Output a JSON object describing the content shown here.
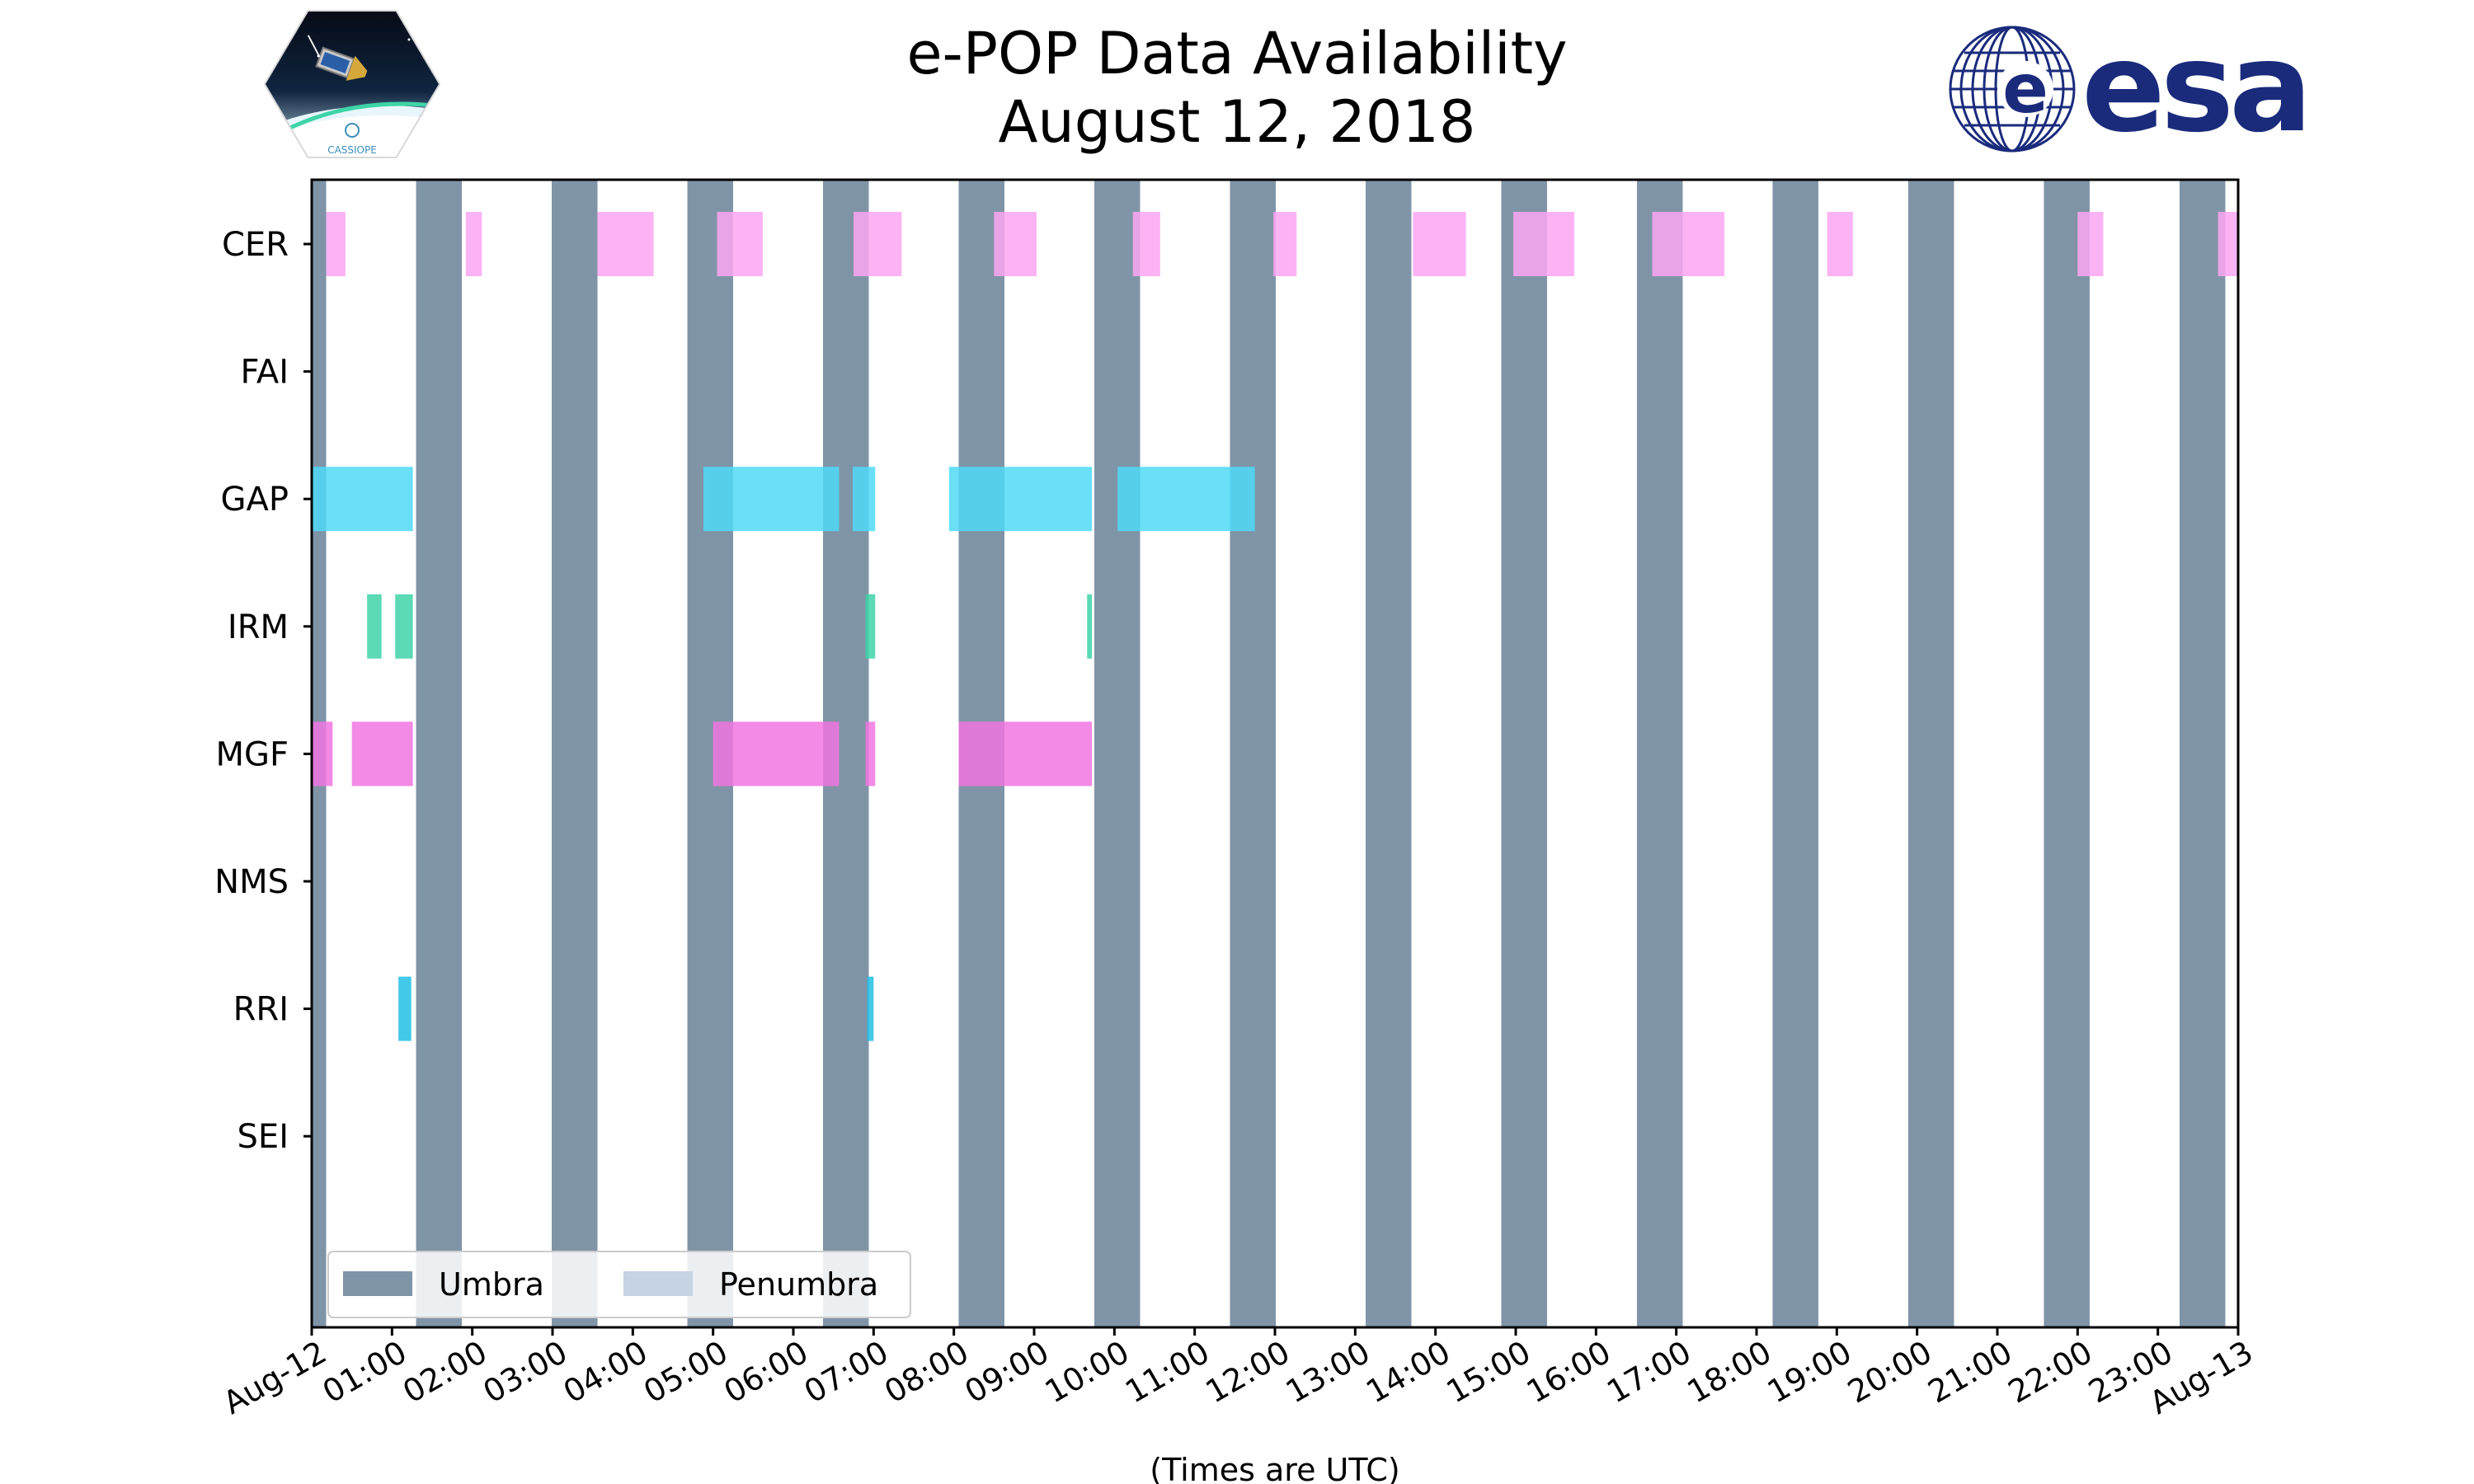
{
  "title": "e-POP Data Availability",
  "subtitle": "August 12, 2018",
  "logos": {
    "left_text": "CASSIOPE",
    "right_text": "esa"
  },
  "colors": {
    "umbra": "#8094a7",
    "penumbra": "#c5d3e4",
    "CER": "#fca6f2",
    "GAP": "#4fd9f7",
    "IRM": "#3ed4a8",
    "MGF": "#f176e2",
    "RRI": "#22bfe4",
    "esa_blue": "#1a2b7c"
  },
  "chart_data": {
    "type": "timeline",
    "title": "e-POP Data Availability",
    "subtitle": "August 12, 2018",
    "xlabel": "(Times are UTC)",
    "x_range_hours": [
      0,
      24
    ],
    "x_tick_labels": [
      "Aug-12",
      "01:00",
      "02:00",
      "03:00",
      "04:00",
      "05:00",
      "06:00",
      "07:00",
      "08:00",
      "09:00",
      "10:00",
      "11:00",
      "12:00",
      "13:00",
      "14:00",
      "15:00",
      "16:00",
      "17:00",
      "18:00",
      "19:00",
      "20:00",
      "21:00",
      "22:00",
      "23:00",
      "Aug-13"
    ],
    "instruments": [
      "CER",
      "FAI",
      "GAP",
      "IRM",
      "MGF",
      "NMS",
      "RRI",
      "SEI"
    ],
    "legend": {
      "placement": "lower-left",
      "entries": [
        "Umbra",
        "Penumbra"
      ]
    },
    "umbra_intervals_hours": [
      [
        0.0,
        0.18
      ],
      [
        1.3,
        1.87
      ],
      [
        2.99,
        3.56
      ],
      [
        4.68,
        5.25
      ],
      [
        6.37,
        6.94
      ],
      [
        8.06,
        8.63
      ],
      [
        9.75,
        10.32
      ],
      [
        11.44,
        12.01
      ],
      [
        13.13,
        13.7
      ],
      [
        14.82,
        15.39
      ],
      [
        16.51,
        17.08
      ],
      [
        18.2,
        18.77
      ],
      [
        19.89,
        20.46
      ],
      [
        21.58,
        22.15
      ],
      [
        23.27,
        23.84
      ]
    ],
    "series": [
      {
        "name": "CER",
        "intervals_hours": [
          [
            0.18,
            0.42
          ],
          [
            1.92,
            2.12
          ],
          [
            3.56,
            4.26
          ],
          [
            5.05,
            5.62
          ],
          [
            6.75,
            7.35
          ],
          [
            8.5,
            9.03
          ],
          [
            10.23,
            10.57
          ],
          [
            11.98,
            12.27
          ],
          [
            13.72,
            14.38
          ],
          [
            14.97,
            15.73
          ],
          [
            16.7,
            17.6
          ],
          [
            18.88,
            19.2
          ],
          [
            22.0,
            22.32
          ],
          [
            23.75,
            24.0
          ]
        ]
      },
      {
        "name": "FAI",
        "intervals_hours": []
      },
      {
        "name": "GAP",
        "intervals_hours": [
          [
            0.0,
            1.26
          ],
          [
            4.88,
            6.57
          ],
          [
            6.74,
            7.02
          ],
          [
            7.94,
            9.72
          ],
          [
            10.04,
            11.75
          ]
        ]
      },
      {
        "name": "IRM",
        "intervals_hours": [
          [
            0.69,
            0.87
          ],
          [
            1.04,
            1.26
          ],
          [
            6.9,
            7.02
          ],
          [
            9.66,
            9.72
          ]
        ]
      },
      {
        "name": "MGF",
        "intervals_hours": [
          [
            0.0,
            0.26
          ],
          [
            0.5,
            1.26
          ],
          [
            5.0,
            6.57
          ],
          [
            6.9,
            7.02
          ],
          [
            8.06,
            9.72
          ]
        ]
      },
      {
        "name": "NMS",
        "intervals_hours": []
      },
      {
        "name": "RRI",
        "intervals_hours": [
          [
            1.08,
            1.24
          ],
          [
            6.92,
            7.0
          ]
        ]
      },
      {
        "name": "SEI",
        "intervals_hours": []
      }
    ]
  }
}
